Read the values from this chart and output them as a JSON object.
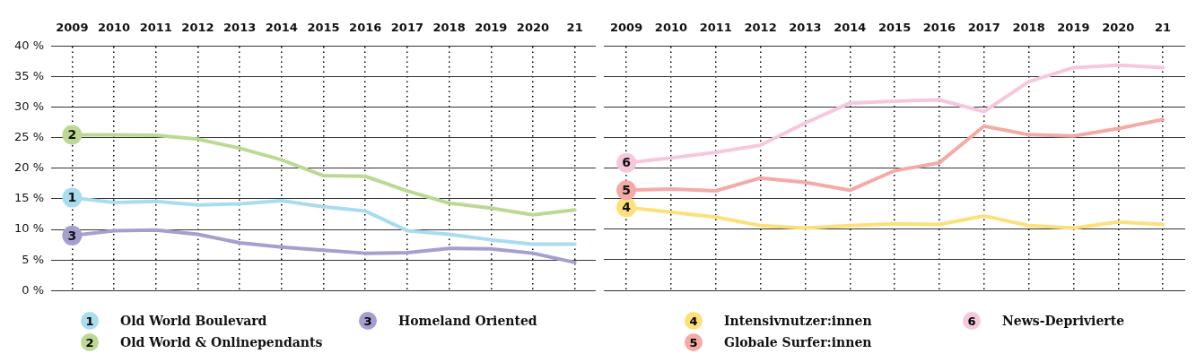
{
  "chart_data": [
    {
      "type": "line",
      "categories": [
        "2009",
        "2010",
        "2011",
        "2012",
        "2013",
        "2014",
        "2015",
        "2016",
        "2017",
        "2018",
        "2019",
        "2020",
        "21"
      ],
      "series": [
        {
          "name": "Old World Boulevard",
          "color": "#a9dcef",
          "values": [
            15.2,
            14.4,
            14.6,
            14.0,
            14.2,
            14.7,
            13.7,
            13.0,
            9.8,
            9.2,
            8.3,
            7.6,
            7.6
          ]
        },
        {
          "name": "Old World & Onlinependants",
          "color": "#bcd994",
          "values": [
            25.5,
            25.5,
            25.4,
            24.8,
            23.3,
            21.4,
            18.8,
            18.7,
            16.3,
            14.3,
            13.5,
            12.4,
            13.2
          ]
        },
        {
          "name": "Homeland Oriented",
          "color": "#a59fd0",
          "values": [
            9.0,
            9.8,
            9.9,
            9.2,
            7.8,
            7.1,
            6.6,
            6.1,
            6.2,
            6.9,
            6.8,
            6.1,
            4.6
          ]
        }
      ],
      "annotations": [
        {
          "text": "1",
          "x": "2009",
          "y": 15.2
        },
        {
          "text": "2",
          "x": "2009",
          "y": 25.5
        },
        {
          "text": "3",
          "x": "2009",
          "y": 9.0
        }
      ],
      "ylim": [
        0,
        40
      ],
      "yticks": [
        {
          "value": 0,
          "label": "0 %"
        },
        {
          "value": 5,
          "label": "5 %"
        },
        {
          "value": 10,
          "label": "10 %"
        },
        {
          "value": 15,
          "label": "15 %"
        },
        {
          "value": 20,
          "label": "20 %"
        },
        {
          "value": 25,
          "label": "25 %"
        },
        {
          "value": 30,
          "label": "30 %"
        },
        {
          "value": 35,
          "label": "35 %"
        },
        {
          "value": 40,
          "label": "40 %"
        }
      ],
      "grid": true,
      "legend": "bottom",
      "marker": "none",
      "line_style": "solid"
    },
    {
      "type": "line",
      "categories": [
        "2009",
        "2010",
        "2011",
        "2012",
        "2013",
        "2014",
        "2015",
        "2016",
        "2017",
        "2018",
        "2019",
        "2020",
        "21"
      ],
      "series": [
        {
          "name": "Intensivnutzer:innen",
          "color": "#fde07c",
          "values": [
            13.6,
            12.8,
            12.0,
            10.6,
            10.2,
            10.6,
            10.9,
            10.8,
            12.2,
            10.6,
            10.2,
            11.2,
            10.8
          ]
        },
        {
          "name": "Globale Surfer:innen",
          "color": "#f4aaa6",
          "values": [
            16.4,
            16.6,
            16.3,
            18.4,
            17.7,
            16.4,
            19.6,
            20.9,
            26.9,
            25.5,
            25.3,
            26.5,
            28.0
          ]
        },
        {
          "name": "News-Deprivierte",
          "color": "#f6c8de",
          "values": [
            20.9,
            21.7,
            22.6,
            23.8,
            27.4,
            30.7,
            31.0,
            31.2,
            29.3,
            34.2,
            36.5,
            36.9,
            36.5
          ]
        }
      ],
      "annotations": [
        {
          "text": "4",
          "x": "2009",
          "y": 13.6
        },
        {
          "text": "5",
          "x": "2009",
          "y": 16.4
        },
        {
          "text": "6",
          "x": "2009",
          "y": 20.9
        }
      ],
      "ylim": [
        0,
        40
      ],
      "yticks": [
        0,
        5,
        10,
        15,
        20,
        25,
        30,
        35,
        40
      ],
      "tick_labels": "x",
      "grid": true,
      "legend": "bottom",
      "marker": "none",
      "line_style": "solid"
    }
  ]
}
